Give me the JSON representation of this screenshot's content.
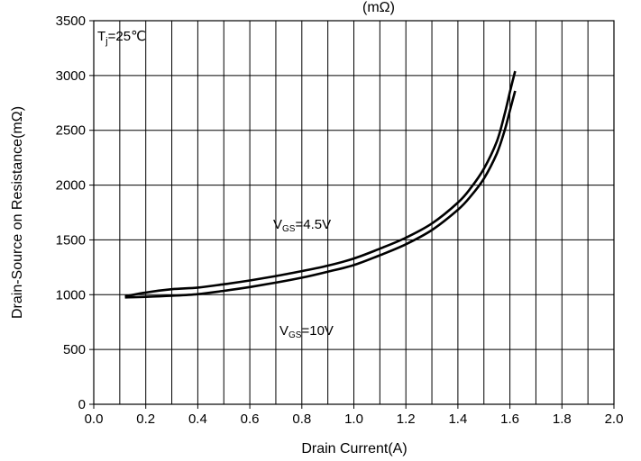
{
  "chart_data": {
    "type": "line",
    "title": "(mΩ)",
    "xlabel": "Drain Current(A)",
    "ylabel": "Drain-Source on Resistance(mΩ)",
    "xlim": [
      0.0,
      2.0
    ],
    "ylim": [
      0,
      3500
    ],
    "x_ticks": [
      "0.0",
      "0.2",
      "0.4",
      "0.6",
      "0.8",
      "1.0",
      "1.2",
      "1.4",
      "1.6",
      "1.8",
      "2.0"
    ],
    "y_ticks": [
      "0",
      "500",
      "1000",
      "1500",
      "2000",
      "2500",
      "3000",
      "3500"
    ],
    "grid": true,
    "annotations": {
      "temperature": {
        "main": "T",
        "sub": "j",
        "rest": "=25℃"
      },
      "vgs_45": {
        "main": "V",
        "sub": "GS",
        "rest": "=4.5V"
      },
      "vgs_10": {
        "main": "V",
        "sub": "GS",
        "rest": "=10V"
      }
    },
    "series": [
      {
        "x": [
          0.12,
          0.2,
          0.3,
          0.4,
          0.5,
          0.6,
          0.7,
          0.8,
          0.9,
          1.0,
          1.1,
          1.2,
          1.3,
          1.4,
          1.45,
          1.5,
          1.55,
          1.58,
          1.6,
          1.62
        ],
        "y": [
          985,
          1020,
          1050,
          1065,
          1095,
          1130,
          1170,
          1215,
          1265,
          1330,
          1420,
          1520,
          1650,
          1840,
          1975,
          2150,
          2400,
          2650,
          2850,
          3040
        ]
      },
      {
        "x": [
          0.12,
          0.2,
          0.3,
          0.4,
          0.5,
          0.6,
          0.7,
          0.8,
          0.9,
          1.0,
          1.1,
          1.2,
          1.3,
          1.4,
          1.45,
          1.5,
          1.55,
          1.58,
          1.6,
          1.62
        ],
        "y": [
          975,
          980,
          990,
          1005,
          1035,
          1070,
          1110,
          1155,
          1210,
          1270,
          1360,
          1460,
          1590,
          1775,
          1900,
          2060,
          2290,
          2500,
          2680,
          2860
        ]
      }
    ]
  }
}
